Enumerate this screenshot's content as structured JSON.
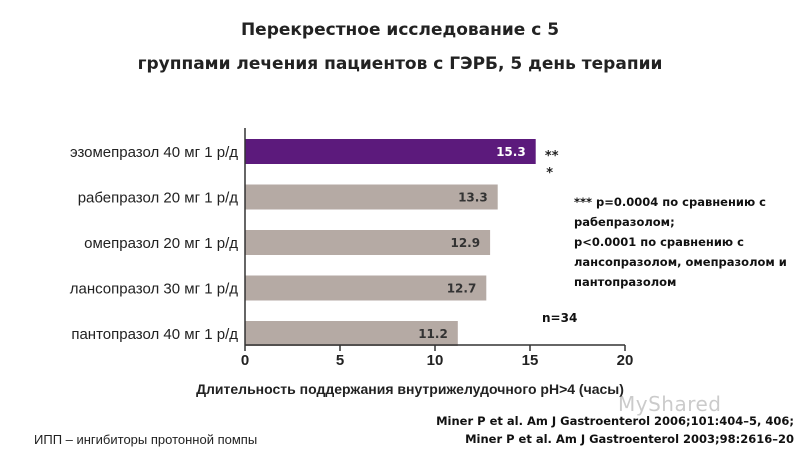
{
  "title_line1": "Перекрестное исследование с 5",
  "title_line2": "группами лечения пациентов с ГЭРБ, 5 день терапии",
  "chart_data": {
    "type": "bar",
    "orientation": "horizontal",
    "categories": [
      "эзомепразол 40 мг 1 р/д",
      "рабепразол 20 мг 1 р/д",
      "омепразол 20 мг 1 р/д",
      "лансопразол 30 мг 1 р/д",
      "пантопразол 40 мг 1 р/д"
    ],
    "values": [
      15.3,
      13.3,
      12.9,
      12.7,
      11.2
    ],
    "value_labels": [
      "15.3",
      "13.3",
      "12.9",
      "12.7",
      "11.2"
    ],
    "xlabel": "Длительность поддержания внутрижелудочного pH>4 (часы)",
    "xlim": [
      0,
      20
    ],
    "xticks": [
      0,
      5,
      10,
      15,
      20
    ],
    "highlight_index": 0,
    "colors": {
      "highlight": "#5c1a7c",
      "default": "#b5aaa4",
      "label_highlight": "#ffffff",
      "label_default": "#333333"
    },
    "significance_marks": [
      "**",
      "*"
    ],
    "legend": "none",
    "grid": false
  },
  "footnote": [
    "*** p=0.0004 по сравнению с",
    "рабепразолом;",
    "p<0.0001 по сравнению с",
    "лансопразолом, омепразолом и",
    "пантопразолом"
  ],
  "n_label": "n=34",
  "references": [
    "Miner P et al. Am J Gastroenterol 2006;101:404–5, 406;",
    "Miner P et al. Am J Gastroenterol 2003;98:2616–20"
  ],
  "abbreviation": "ИПП – ингибиторы протонной помпы",
  "watermark": "MyShared"
}
